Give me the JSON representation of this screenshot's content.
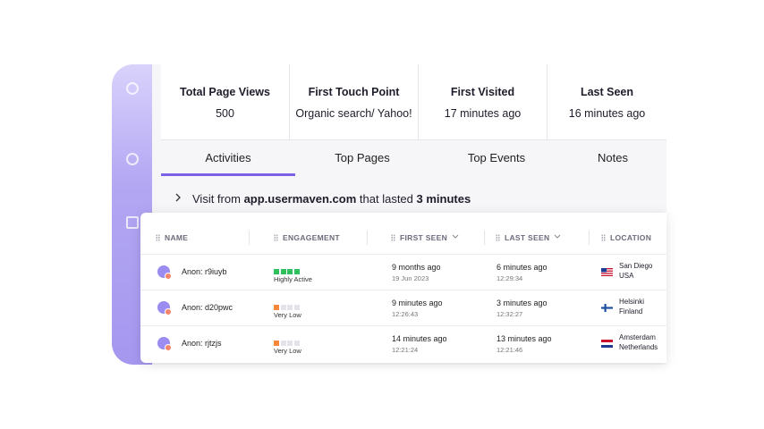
{
  "stats": [
    {
      "label": "Total Page Views",
      "value": "500"
    },
    {
      "label": "First Touch Point",
      "value": "Organic search/ Yahoo!"
    },
    {
      "label": "First Visited",
      "value": "17 minutes ago"
    },
    {
      "label": "Last Seen",
      "value": "16 minutes ago"
    }
  ],
  "tabs": [
    "Activities",
    "Top Pages",
    "Top Events",
    "Notes"
  ],
  "visit": {
    "prefix": "Visit from",
    "domain": "app.usermaven.com",
    "middle": "that lasted",
    "duration": "3 minutes"
  },
  "table": {
    "headers": [
      "NAME",
      "ENGAGEMENT",
      "FIRST SEEN",
      "LAST SEEN",
      "LOCATION"
    ],
    "rows": [
      {
        "name": "Anon: r9iuyb",
        "engagement_level": 4,
        "engagement_color": "#2fbf5b",
        "engagement": "Highly Active",
        "first_seen": "9 months ago",
        "first_seen_detail": "19 Jun 2023",
        "last_seen": "6 minutes ago",
        "last_seen_detail": "12:29:34",
        "city": "San Diego",
        "country": "USA"
      },
      {
        "name": "Anon: d20pwc",
        "engagement_level": 1,
        "engagement_color": "#f5883a",
        "engagement": "Very Low",
        "first_seen": "9 minutes ago",
        "first_seen_detail": "12:26:43",
        "last_seen": "3 minutes ago",
        "last_seen_detail": "12:32:27",
        "city": "Helsinki",
        "country": "Finland"
      },
      {
        "name": "Anon: rjtzjs",
        "engagement_level": 1,
        "engagement_color": "#f5883a",
        "engagement": "Very Low",
        "first_seen": "14 minutes ago",
        "first_seen_detail": "12:21:24",
        "last_seen": "13 minutes ago",
        "last_seen_detail": "12:21:46",
        "city": "Amsterdam",
        "country": "Netherlands"
      }
    ]
  }
}
